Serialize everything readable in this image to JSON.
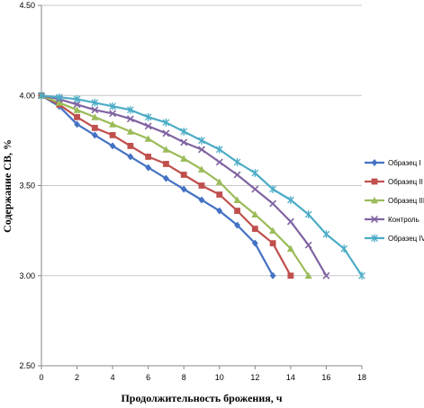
{
  "chart_data": {
    "type": "line",
    "title": "",
    "xlabel": "Продолжительность брожения, ч",
    "ylabel": "Содержание СВ, %",
    "xlim": [
      0,
      18
    ],
    "ylim": [
      2.5,
      4.5
    ],
    "x_ticks": [
      "0",
      "2",
      "4",
      "6",
      "8",
      "10",
      "12",
      "14",
      "16",
      "18"
    ],
    "y_ticks": [
      "2.50",
      "3.00",
      "3.50",
      "4.00",
      "4.50"
    ],
    "grid": "horizontal",
    "legend_position": "right",
    "series": [
      {
        "name": "Образец I",
        "color": "#4472C4",
        "marker": "diamond",
        "x": [
          0,
          1,
          2,
          3,
          4,
          5,
          6,
          7,
          8,
          9,
          10,
          11,
          12,
          13
        ],
        "y": [
          4.0,
          3.94,
          3.84,
          3.78,
          3.72,
          3.66,
          3.6,
          3.54,
          3.48,
          3.42,
          3.36,
          3.28,
          3.18,
          3.0
        ]
      },
      {
        "name": "Образец II",
        "color": "#C0504D",
        "marker": "square",
        "x": [
          0,
          1,
          2,
          3,
          4,
          5,
          6,
          7,
          8,
          9,
          10,
          11,
          12,
          13,
          14
        ],
        "y": [
          4.0,
          3.95,
          3.88,
          3.82,
          3.78,
          3.72,
          3.66,
          3.62,
          3.56,
          3.5,
          3.45,
          3.36,
          3.26,
          3.18,
          3.0
        ]
      },
      {
        "name": "Образец III",
        "color": "#9BBB59",
        "marker": "triangle",
        "x": [
          0,
          1,
          2,
          3,
          4,
          5,
          6,
          7,
          8,
          9,
          10,
          11,
          12,
          13,
          14,
          15
        ],
        "y": [
          4.0,
          3.96,
          3.92,
          3.88,
          3.84,
          3.8,
          3.76,
          3.7,
          3.65,
          3.59,
          3.52,
          3.42,
          3.34,
          3.25,
          3.15,
          3.0
        ]
      },
      {
        "name": "Контроль",
        "color": "#8064A2",
        "marker": "x",
        "x": [
          0,
          1,
          2,
          3,
          4,
          5,
          6,
          7,
          8,
          9,
          10,
          11,
          12,
          13,
          14,
          15,
          16
        ],
        "y": [
          4.0,
          3.98,
          3.95,
          3.92,
          3.9,
          3.87,
          3.83,
          3.79,
          3.74,
          3.7,
          3.63,
          3.56,
          3.48,
          3.4,
          3.3,
          3.17,
          3.0
        ]
      },
      {
        "name": "Образец IV",
        "color": "#4BACC6",
        "marker": "star",
        "x": [
          0,
          1,
          2,
          3,
          4,
          5,
          6,
          7,
          8,
          9,
          10,
          11,
          12,
          13,
          14,
          15,
          16,
          17,
          18
        ],
        "y": [
          4.0,
          3.99,
          3.98,
          3.96,
          3.94,
          3.92,
          3.88,
          3.85,
          3.8,
          3.75,
          3.7,
          3.63,
          3.57,
          3.48,
          3.42,
          3.34,
          3.23,
          3.15,
          3.0
        ]
      }
    ]
  }
}
